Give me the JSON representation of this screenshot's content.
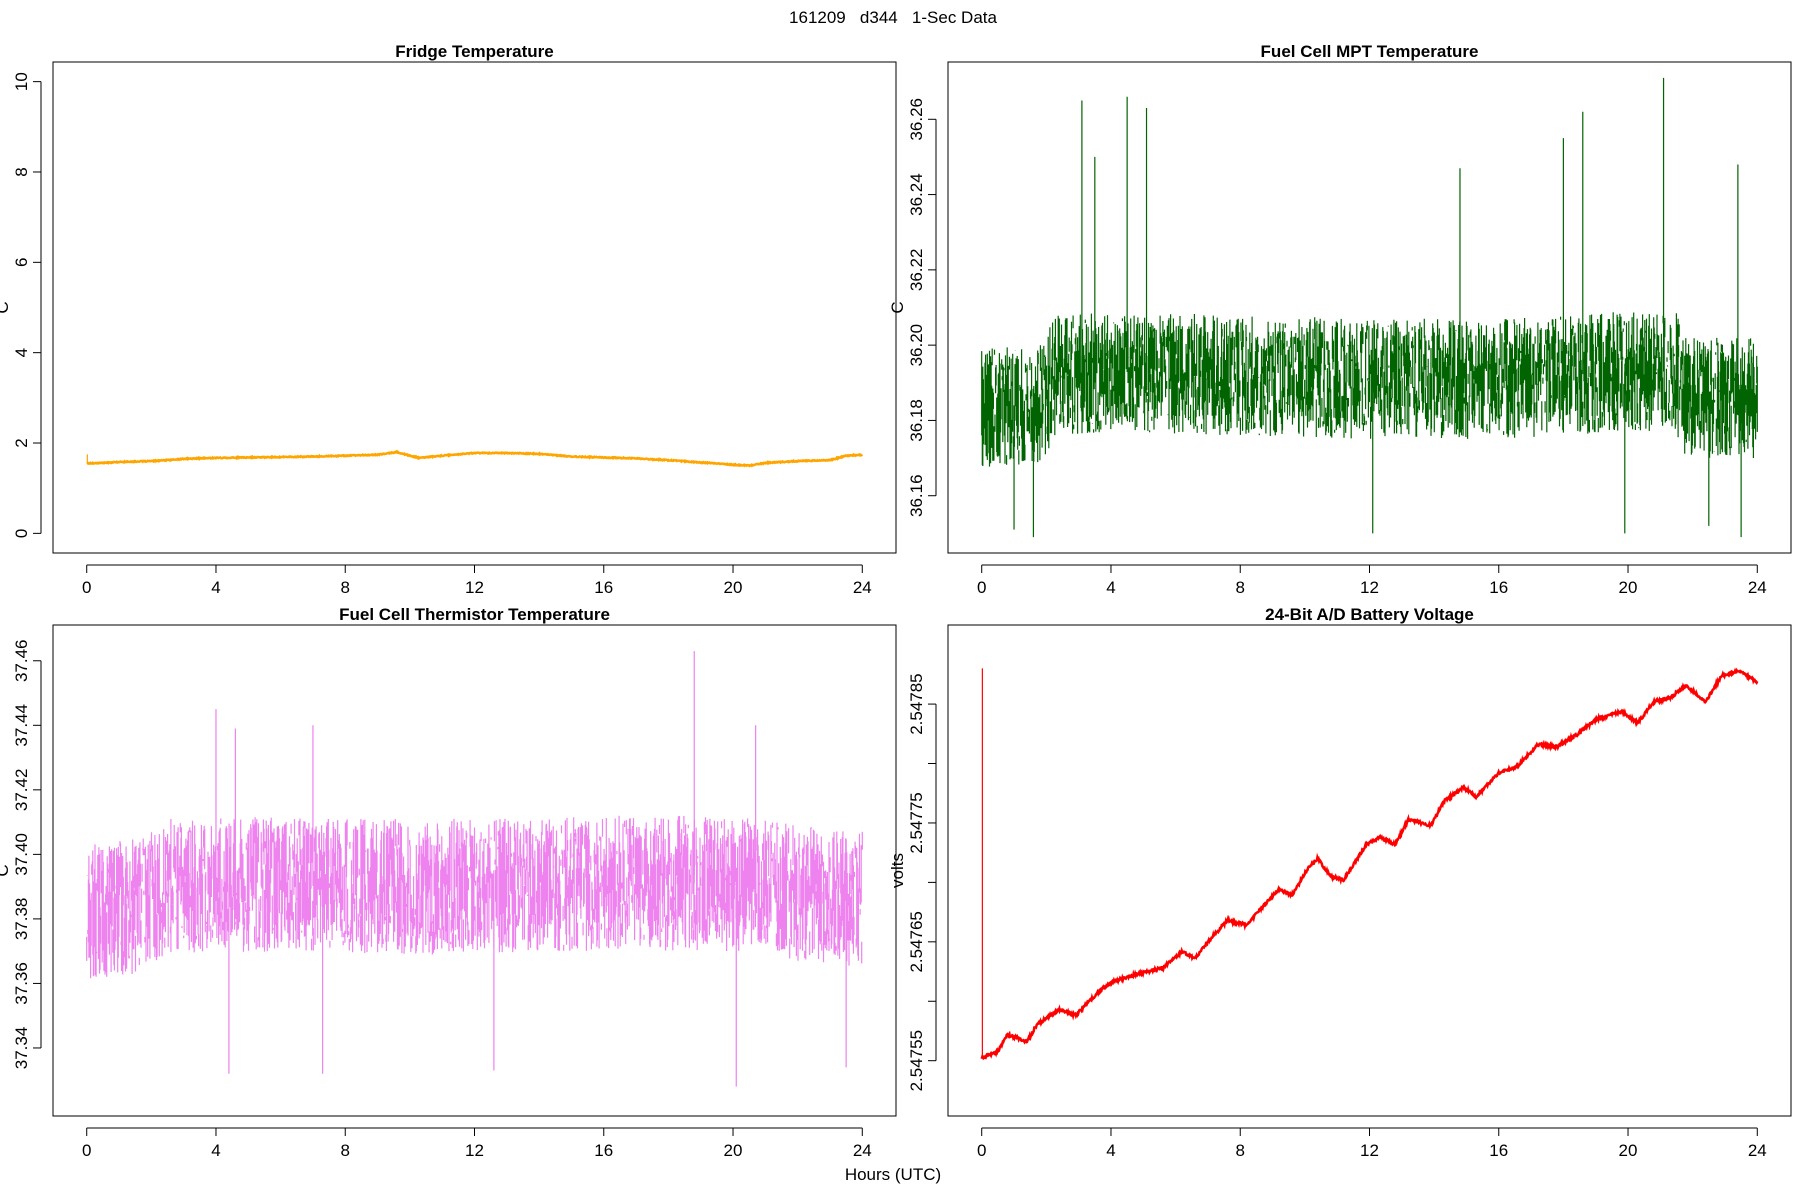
{
  "figure": {
    "title": "161209   d344   1-Sec Data",
    "xlabel": "Hours (UTC)"
  },
  "chart_data": [
    {
      "type": "line",
      "title": "Fridge Temperature",
      "xlabel": "Hours (UTC)",
      "ylabel": "C",
      "color": "#FFA500",
      "xlim": [
        0,
        24
      ],
      "ylim": [
        0,
        10
      ],
      "x_ticks": [
        0,
        4,
        8,
        12,
        16,
        20,
        24
      ],
      "y_ticks": [
        "0",
        "2",
        "4",
        "6",
        "8",
        "10"
      ],
      "noise": 0.02,
      "series": [
        {
          "name": "Fridge Temperature",
          "x": [
            0,
            0.5,
            1,
            2,
            2.5,
            3,
            4,
            5,
            6,
            7,
            8,
            9,
            9.6,
            10,
            10.3,
            11,
            12,
            13,
            14,
            15,
            16,
            17,
            18,
            19,
            19.5,
            20,
            20.5,
            21,
            22,
            23,
            23.5,
            24
          ],
          "values": [
            1.55,
            1.56,
            1.58,
            1.6,
            1.62,
            1.65,
            1.67,
            1.68,
            1.69,
            1.7,
            1.72,
            1.74,
            1.8,
            1.72,
            1.67,
            1.72,
            1.78,
            1.78,
            1.76,
            1.7,
            1.68,
            1.66,
            1.62,
            1.57,
            1.55,
            1.52,
            1.5,
            1.56,
            1.6,
            1.62,
            1.72,
            1.74
          ]
        }
      ],
      "spikes": [
        {
          "x": 0.02,
          "value": 1.75
        }
      ]
    },
    {
      "type": "line",
      "title": "Fuel Cell MPT Temperature",
      "xlabel": "Hours (UTC)",
      "ylabel": "C",
      "color": "#006400",
      "xlim": [
        0,
        24
      ],
      "ylim": [
        36.15,
        36.27
      ],
      "x_ticks": [
        0,
        4,
        8,
        12,
        16,
        20,
        24
      ],
      "y_ticks": [
        "36.16",
        "36.18",
        "36.20",
        "36.22",
        "36.24",
        "36.26"
      ],
      "noise": 0.016,
      "series": [
        {
          "name": "Fuel Cell MPT Temperature",
          "x": [
            0,
            2,
            2.2,
            4,
            8,
            12,
            16,
            20,
            21.5,
            21.7,
            24
          ],
          "values": [
            36.183,
            36.185,
            36.192,
            36.193,
            36.192,
            36.191,
            36.191,
            36.193,
            36.193,
            36.186,
            36.186
          ]
        }
      ],
      "spikes": [
        {
          "x": 3.1,
          "value": 36.265
        },
        {
          "x": 3.5,
          "value": 36.25
        },
        {
          "x": 4.5,
          "value": 36.266
        },
        {
          "x": 5.1,
          "value": 36.263
        },
        {
          "x": 14.8,
          "value": 36.247
        },
        {
          "x": 18.0,
          "value": 36.255
        },
        {
          "x": 18.6,
          "value": 36.262
        },
        {
          "x": 21.1,
          "value": 36.271
        },
        {
          "x": 23.4,
          "value": 36.248
        },
        {
          "x": 1.0,
          "value": 36.151
        },
        {
          "x": 1.6,
          "value": 36.149
        },
        {
          "x": 12.1,
          "value": 36.15
        },
        {
          "x": 19.9,
          "value": 36.15
        },
        {
          "x": 22.5,
          "value": 36.152
        },
        {
          "x": 23.5,
          "value": 36.149
        }
      ]
    },
    {
      "type": "line",
      "title": "Fuel Cell Thermistor Temperature",
      "xlabel": "Hours (UTC)",
      "ylabel": "C",
      "color": "#EE82EE",
      "xlim": [
        0,
        24
      ],
      "ylim": [
        37.325,
        37.465
      ],
      "x_ticks": [
        0,
        4,
        8,
        12,
        16,
        20,
        24
      ],
      "y_ticks": [
        "37.34",
        "37.36",
        "37.38",
        "37.40",
        "37.42",
        "37.44",
        "37.46"
      ],
      "noise": 0.021,
      "series": [
        {
          "name": "Fuel Cell Thermistor Temperature",
          "x": [
            0,
            1.5,
            2.5,
            4,
            8,
            12,
            16,
            20,
            22,
            24
          ],
          "values": [
            37.382,
            37.384,
            37.39,
            37.391,
            37.39,
            37.39,
            37.391,
            37.391,
            37.388,
            37.386
          ]
        }
      ],
      "spikes": [
        {
          "x": 4.0,
          "value": 37.445
        },
        {
          "x": 4.6,
          "value": 37.439
        },
        {
          "x": 7.0,
          "value": 37.44
        },
        {
          "x": 18.8,
          "value": 37.463
        },
        {
          "x": 20.7,
          "value": 37.44
        },
        {
          "x": 4.4,
          "value": 37.332
        },
        {
          "x": 7.3,
          "value": 37.332
        },
        {
          "x": 12.6,
          "value": 37.333
        },
        {
          "x": 20.1,
          "value": 37.328
        },
        {
          "x": 23.5,
          "value": 37.334
        }
      ]
    },
    {
      "type": "line",
      "title": "24-Bit A/D Battery Voltage",
      "xlabel": "Hours (UTC)",
      "ylabel": "volts",
      "color": "#FF0000",
      "xlim": [
        0,
        24
      ],
      "ylim": [
        2.54752,
        2.5479
      ],
      "x_ticks": [
        0,
        4,
        8,
        12,
        16,
        20,
        24
      ],
      "y_ticks": [
        "2.54755",
        "",
        "2.54765",
        "",
        "2.54775",
        "",
        "2.54785"
      ],
      "noise": 2.5e-06,
      "series": [
        {
          "name": "24-Bit A/D Battery Voltage",
          "x": [
            0,
            0.5,
            0.8,
            1.4,
            1.7,
            2.4,
            2.9,
            3.4,
            3.8,
            4.2,
            5,
            5.6,
            6.2,
            6.6,
            7,
            7.6,
            8.2,
            8.6,
            9.2,
            9.6,
            10.1,
            10.4,
            10.8,
            11.2,
            11.9,
            12.3,
            12.8,
            13.2,
            13.9,
            14.3,
            14.9,
            15.3,
            16,
            16.6,
            17.2,
            17.8,
            18.4,
            19,
            19.8,
            20.3,
            20.8,
            21.3,
            21.8,
            22.4,
            22.9,
            23.5,
            24
          ],
          "values": [
            2.547552,
            2.547558,
            2.547572,
            2.547566,
            2.54758,
            2.547593,
            2.547588,
            2.547602,
            2.547612,
            2.547618,
            2.547624,
            2.547628,
            2.547642,
            2.547636,
            2.54765,
            2.547668,
            2.547664,
            2.547677,
            2.547694,
            2.547689,
            2.547712,
            2.54772,
            2.547705,
            2.547702,
            2.547732,
            2.547738,
            2.547732,
            2.547753,
            2.547748,
            2.547768,
            2.54778,
            2.547772,
            2.547792,
            2.547798,
            2.547816,
            2.547814,
            2.547824,
            2.547837,
            2.547844,
            2.547834,
            2.547852,
            2.547855,
            2.547866,
            2.547852,
            2.547874,
            2.547878,
            2.547868
          ]
        }
      ],
      "spikes": [
        {
          "x": 0.02,
          "value": 2.54788
        }
      ]
    }
  ]
}
